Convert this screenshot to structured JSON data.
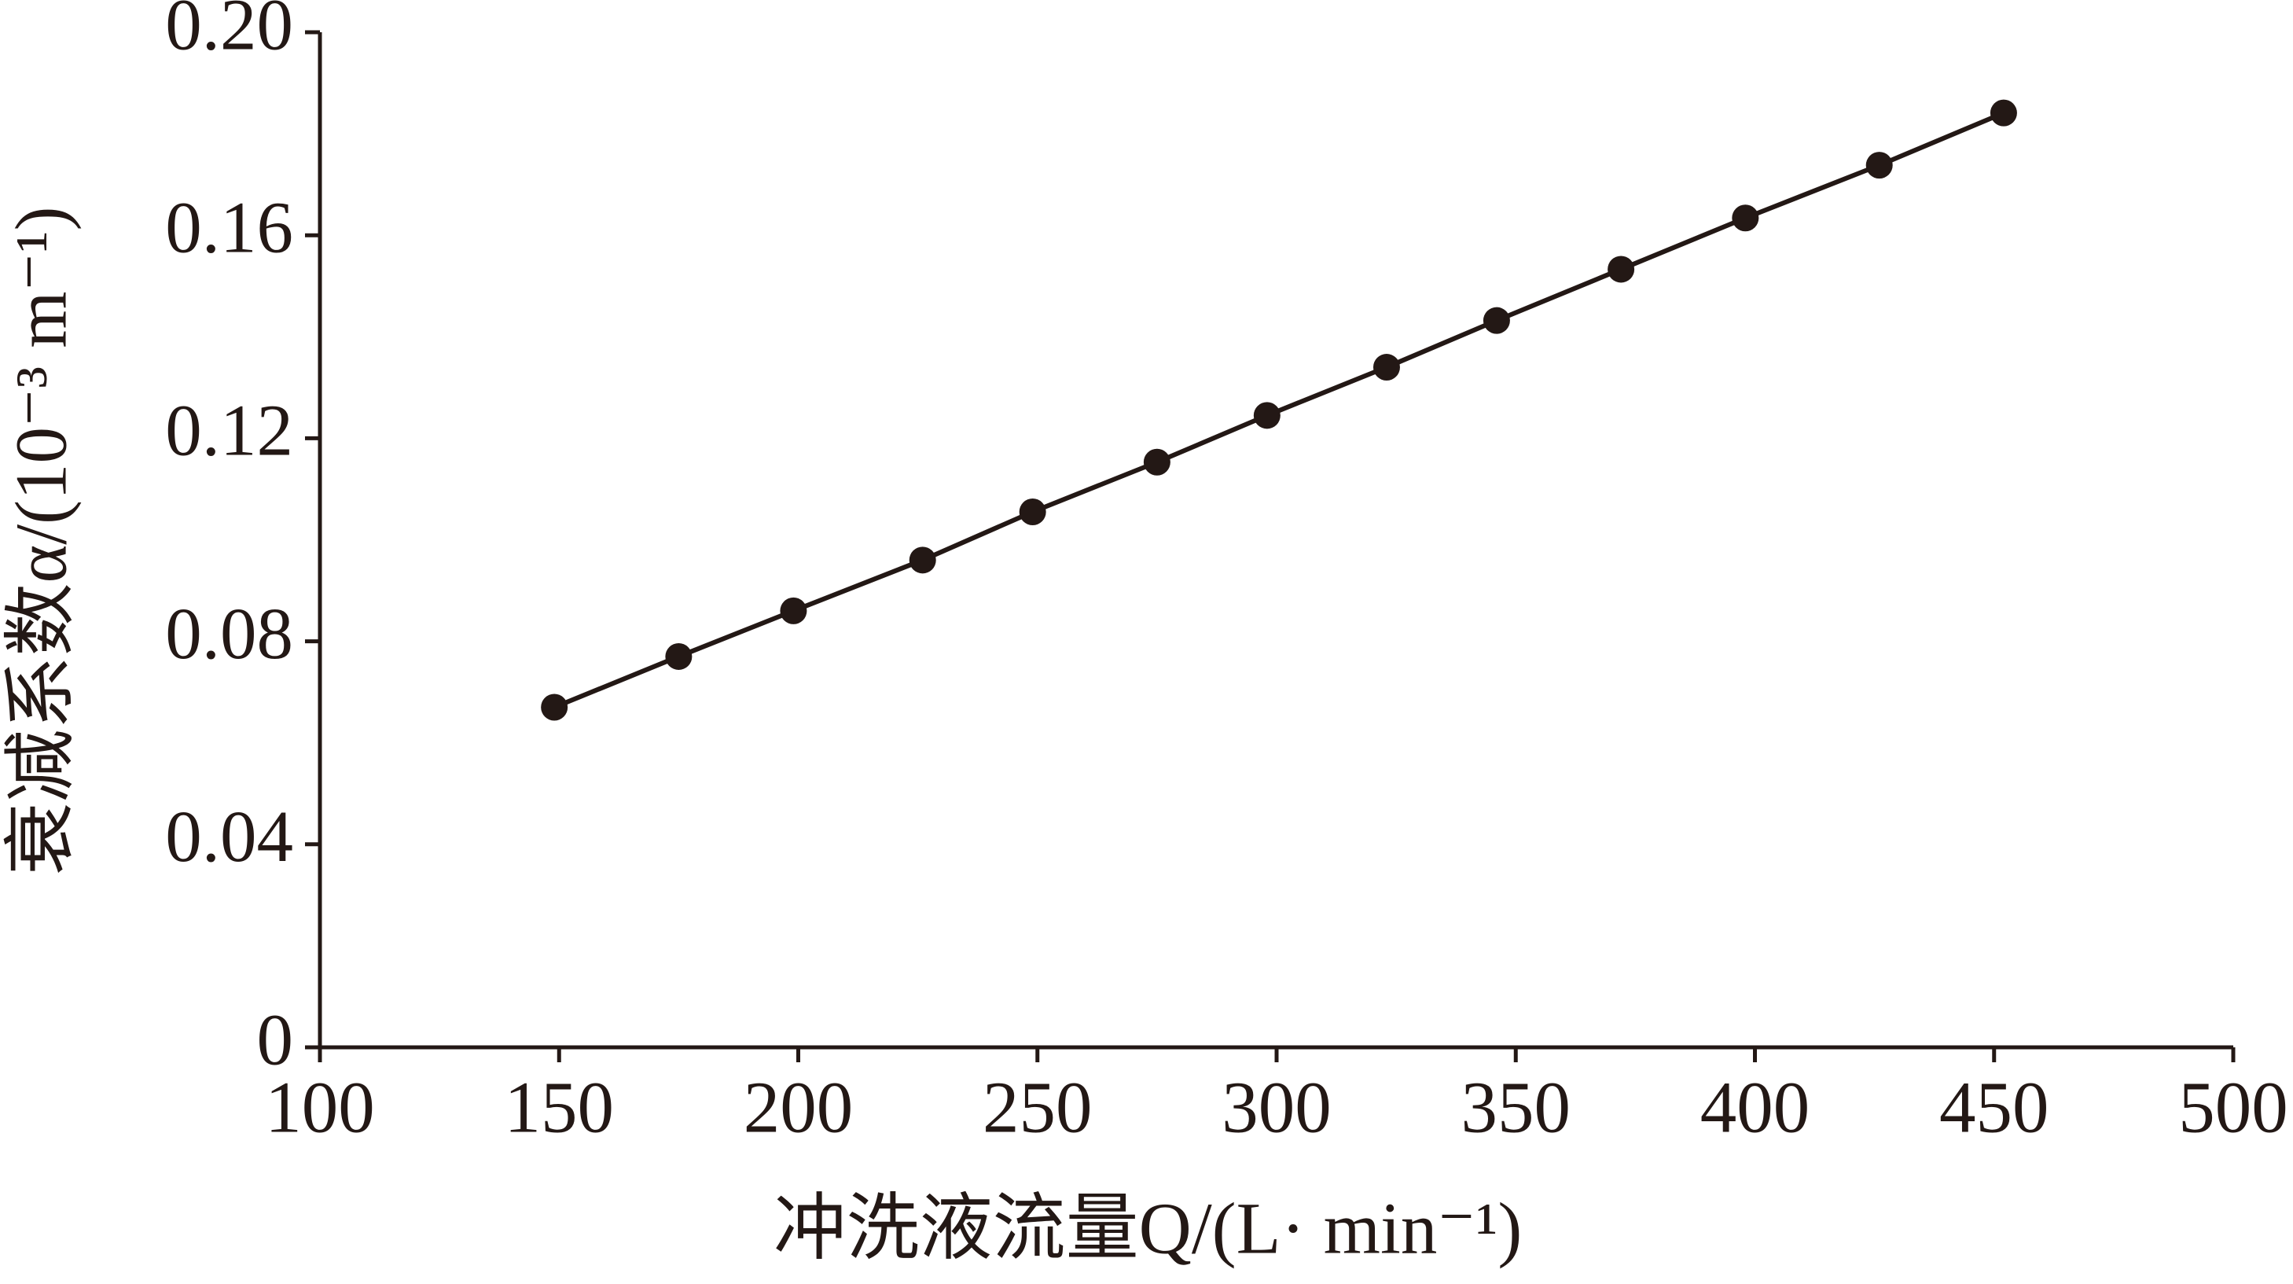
{
  "chart_data": {
    "type": "line",
    "xlabel": "冲洗液流量Q/(L· min⁻¹)",
    "ylabel": "衰减系数α/(10⁻³ m⁻¹)",
    "x": [
      149,
      175,
      199,
      226,
      249,
      275,
      298,
      323,
      346,
      372,
      398,
      426,
      452
    ],
    "series": [
      {
        "color": "#231815",
        "values": [
          0.067,
          0.077,
          0.086,
          0.096,
          0.1055,
          0.1153,
          0.1245,
          0.134,
          0.1432,
          0.1533,
          0.1634,
          0.1738,
          0.1841
        ]
      }
    ],
    "xlim": [
      100,
      500
    ],
    "xticks": [
      100,
      150,
      200,
      250,
      300,
      350,
      400,
      450,
      500
    ],
    "ylim": [
      0,
      0.2
    ],
    "yticks": [
      0,
      0.04,
      0.08,
      0.12,
      0.16,
      {
        "value": 0.2,
        "label": "0.20"
      }
    ]
  }
}
